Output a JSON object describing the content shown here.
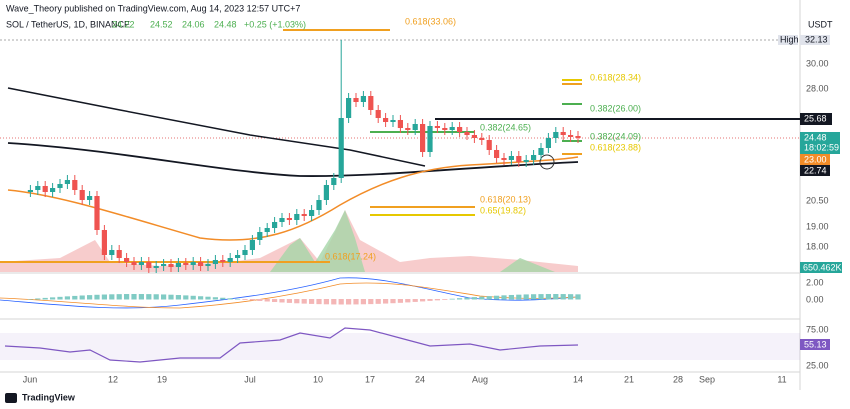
{
  "header": {
    "publisher": "Wave_Theory published on TradingView.com, Aug 14, 2023 12:57 UTC+7",
    "symbol": "SOL / TetherUS, 1D, BINANCE",
    "open": "24.22",
    "high": "24.52",
    "low": "24.06",
    "close": "24.48",
    "change": "+0.25 (+1.03%)"
  },
  "currency": "USDT",
  "price_axis": {
    "high_label": "High",
    "high": "32.13",
    "levels": [
      "30.00",
      "28.00",
      "20.50",
      "19.00",
      "18.00"
    ],
    "resistance": "25.68",
    "last": "24.48",
    "countdown": "18:02:59",
    "ma50": "23.00",
    "ma200": "22.74",
    "volume": "650.462K"
  },
  "fib_labels": [
    "0.618(33.06)",
    "0.618(28.34)",
    "0.382(26.00)",
    "0.382(24.65)",
    "0.382(24.09)",
    "0.618(23.88)",
    "0.618(20.13)",
    "0.65(19.82)",
    "0.618(17.24)"
  ],
  "macd_axis": [
    "2.00",
    "0.00"
  ],
  "rsi_axis": {
    "upper": "75.00",
    "value": "55.13",
    "lower": "25.00"
  },
  "dates": [
    "Jun",
    "12",
    "19",
    "Jul",
    "10",
    "17",
    "24",
    "Aug",
    "14",
    "21",
    "28",
    "Sep",
    "11"
  ],
  "footer": "TradingView"
}
